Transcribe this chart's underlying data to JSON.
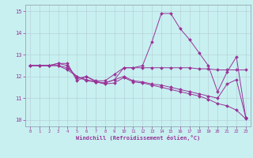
{
  "xlabel": "Windchill (Refroidissement éolien,°C)",
  "background_color": "#c8f0f0",
  "line_color": "#993399",
  "grid_color": "#aabbcc",
  "xlim": [
    -0.5,
    23.5
  ],
  "ylim": [
    9.7,
    15.3
  ],
  "yticks": [
    10,
    11,
    12,
    13,
    14,
    15
  ],
  "xticks": [
    0,
    1,
    2,
    3,
    4,
    5,
    6,
    7,
    8,
    9,
    10,
    11,
    12,
    13,
    14,
    15,
    16,
    17,
    18,
    19,
    20,
    21,
    22,
    23
  ],
  "series": [
    {
      "x": [
        0,
        1,
        2,
        3,
        4,
        5,
        6,
        7,
        8,
        9,
        10,
        11,
        12,
        13,
        14,
        15,
        16,
        17,
        18,
        19,
        20,
        21,
        22,
        23
      ],
      "y": [
        12.5,
        12.5,
        12.5,
        12.6,
        12.6,
        11.8,
        12.0,
        11.8,
        11.8,
        12.1,
        12.4,
        12.4,
        12.5,
        13.6,
        14.9,
        14.9,
        14.2,
        13.7,
        13.1,
        12.5,
        11.3,
        12.2,
        12.9,
        10.1
      ]
    },
    {
      "x": [
        0,
        1,
        2,
        3,
        4,
        5,
        6,
        7,
        8,
        9,
        10,
        11,
        12,
        13,
        14,
        15,
        16,
        17,
        18,
        19,
        20,
        21,
        22,
        23
      ],
      "y": [
        12.5,
        12.5,
        12.5,
        12.6,
        12.5,
        11.9,
        12.0,
        11.75,
        11.7,
        11.85,
        12.4,
        12.4,
        12.4,
        12.4,
        12.4,
        12.4,
        12.4,
        12.4,
        12.35,
        12.35,
        12.3,
        12.3,
        12.3,
        12.3
      ]
    },
    {
      "x": [
        0,
        1,
        2,
        3,
        4,
        5,
        6,
        7,
        8,
        9,
        10,
        11,
        12,
        13,
        14,
        15,
        16,
        17,
        18,
        19,
        20,
        21,
        22,
        23
      ],
      "y": [
        12.5,
        12.5,
        12.5,
        12.5,
        12.4,
        12.0,
        11.8,
        11.75,
        11.7,
        11.85,
        12.0,
        11.8,
        11.75,
        11.65,
        11.6,
        11.5,
        11.4,
        11.3,
        11.2,
        11.1,
        11.0,
        11.65,
        11.85,
        10.1
      ]
    },
    {
      "x": [
        0,
        1,
        2,
        3,
        4,
        5,
        6,
        7,
        8,
        9,
        10,
        11,
        12,
        13,
        14,
        15,
        16,
        17,
        18,
        19,
        20,
        21,
        22,
        23
      ],
      "y": [
        12.5,
        12.5,
        12.5,
        12.5,
        12.3,
        12.0,
        11.85,
        11.75,
        11.65,
        11.7,
        11.95,
        11.75,
        11.7,
        11.6,
        11.5,
        11.4,
        11.3,
        11.2,
        11.1,
        10.95,
        10.75,
        10.65,
        10.45,
        10.05
      ]
    }
  ]
}
